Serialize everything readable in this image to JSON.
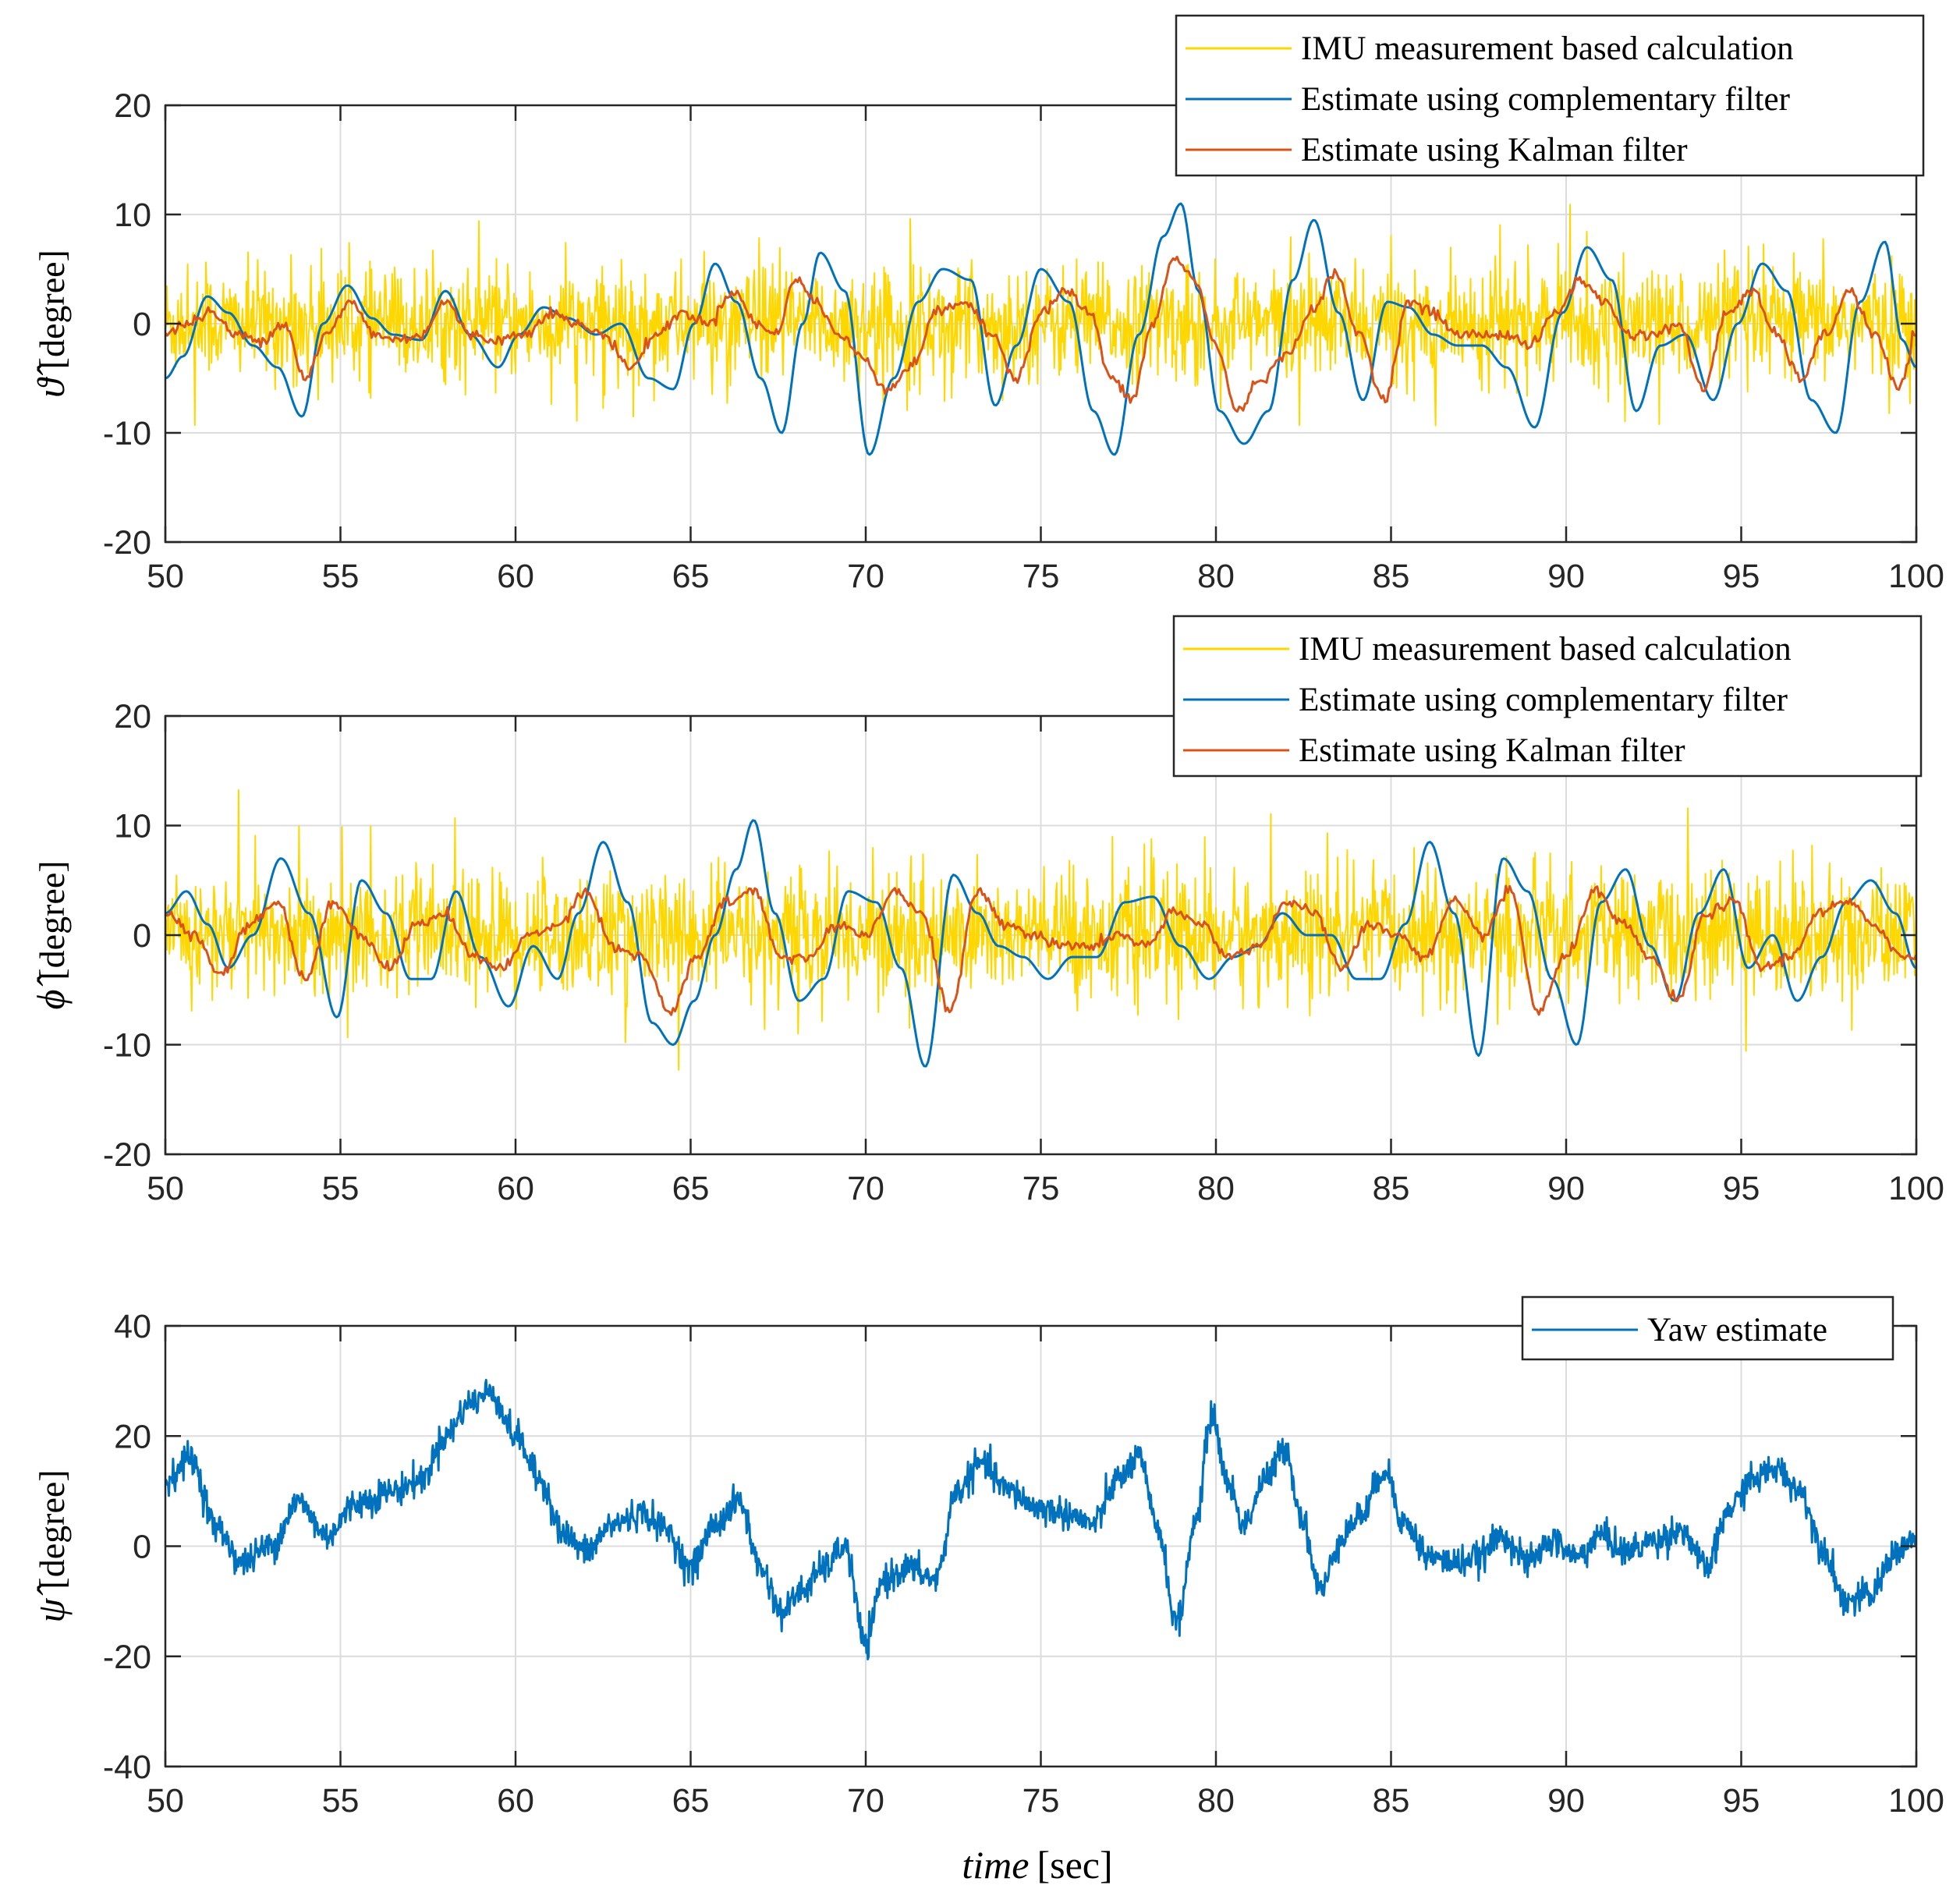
{
  "chart_data": [
    {
      "type": "line",
      "title": "",
      "ylabel_symbol": "ϑ̂",
      "ylabel_unit": "[degree]",
      "xlabel": "",
      "xlim": [
        50,
        100
      ],
      "ylim": [
        -20,
        20
      ],
      "xticks": [
        50,
        55,
        60,
        65,
        70,
        75,
        80,
        85,
        90,
        95,
        100
      ],
      "yticks": [
        -20,
        -10,
        0,
        10,
        20
      ],
      "grid": true,
      "legend_position": "top-right",
      "series": [
        {
          "name": "IMU measurement based calculation",
          "color": "#FFD700",
          "style": "noisy",
          "noise_amplitude": 4.5,
          "x": [
            50,
            100
          ],
          "y": [
            0,
            0
          ]
        },
        {
          "name": "Estimate using complementary filter",
          "color": "#0072BD",
          "x": [
            50,
            50.5,
            51.2,
            51.8,
            52.5,
            53.2,
            53.9,
            54.5,
            55.2,
            55.9,
            56.5,
            57.3,
            58,
            58.7,
            59.5,
            60.1,
            60.8,
            61.5,
            62.3,
            63,
            63.8,
            64.5,
            65.1,
            65.7,
            66.3,
            67,
            67.6,
            68.2,
            68.7,
            69.4,
            70.1,
            70.8,
            71.5,
            72.2,
            73,
            73.7,
            74.3,
            75,
            75.8,
            76.5,
            77.1,
            77.8,
            78.5,
            79,
            79.5,
            80.1,
            80.8,
            81.5,
            82.2,
            82.8,
            83.5,
            84.2,
            84.9,
            85.5,
            86.2,
            86.9,
            87.6,
            88.3,
            89.1,
            89.9,
            90.6,
            91.3,
            92,
            92.7,
            93.4,
            94.2,
            94.9,
            95.6,
            96.3,
            97,
            97.7,
            98.4,
            99.1,
            99.6,
            100
          ],
          "y": [
            -5,
            -3,
            2.5,
            1,
            -2,
            -4,
            -8.5,
            0,
            3.5,
            0.5,
            -1,
            -1.5,
            3,
            -1,
            -4,
            -1,
            1.5,
            0.5,
            -1,
            0,
            -5,
            -6,
            0,
            5.5,
            2,
            -5,
            -10,
            0,
            6.5,
            3,
            -12,
            -5,
            2,
            5,
            4,
            -7.5,
            -2,
            5,
            2,
            -8,
            -12,
            -1,
            8,
            11,
            3,
            -8,
            -11,
            -8,
            4,
            9.5,
            1,
            -7,
            2,
            1.5,
            -1,
            -2,
            -2,
            -4,
            -9.5,
            1,
            7,
            4,
            -8,
            -2,
            -1,
            -7,
            0,
            5.5,
            3,
            -7,
            -10,
            2,
            7.5,
            -1.5,
            -4
          ]
        },
        {
          "name": "Estimate using Kalman filter",
          "color": "#D95319",
          "x": [
            50,
            50.6,
            51.3,
            52,
            52.7,
            53.4,
            54,
            54.6,
            55.3,
            56,
            56.6,
            57.3,
            58,
            58.7,
            59.4,
            60.2,
            61,
            61.7,
            62.5,
            63.3,
            64,
            64.8,
            65.5,
            66.2,
            66.9,
            67.4,
            68,
            68.6,
            69.2,
            69.9,
            70.6,
            71.3,
            72,
            72.8,
            73.6,
            74.3,
            75,
            75.7,
            76.4,
            77,
            77.6,
            78.2,
            78.8,
            79.4,
            80,
            80.6,
            81.3,
            82,
            82.7,
            83.4,
            84.1,
            84.8,
            85.5,
            86.2,
            86.9,
            87.6,
            88.3,
            89,
            89.7,
            90.4,
            91.1,
            91.8,
            92.5,
            93.2,
            93.9,
            94.6,
            95.3,
            96,
            96.7,
            97.4,
            98.1,
            98.8,
            99.5,
            100
          ],
          "y": [
            -1,
            0,
            1,
            -1,
            -1.5,
            0,
            -5,
            -1,
            2,
            -1,
            -1.5,
            -1,
            2,
            -1,
            -1.5,
            -1,
            1,
            0,
            -1,
            -4,
            -1,
            1,
            0,
            3,
            0,
            -1,
            4,
            2,
            -1,
            -3,
            -6,
            -4,
            1,
            2,
            -1,
            -5,
            1,
            3,
            1,
            -5,
            -7,
            0,
            6,
            4,
            -2,
            -8,
            -5,
            -3,
            1,
            4.5,
            -1,
            -7,
            2,
            1,
            -1,
            -1,
            -1,
            -2,
            1,
            4,
            2,
            -1,
            -1,
            0,
            -6,
            1,
            3,
            -1,
            -5,
            -1,
            3,
            -1,
            -6,
            -1
          ]
        }
      ]
    },
    {
      "type": "line",
      "title": "",
      "ylabel_symbol": "ϕ̂",
      "ylabel_unit": "[degree]",
      "xlabel": "",
      "xlim": [
        50,
        100
      ],
      "ylim": [
        -20,
        20
      ],
      "xticks": [
        50,
        55,
        60,
        65,
        70,
        75,
        80,
        85,
        90,
        95,
        100
      ],
      "yticks": [
        -20,
        -10,
        0,
        10,
        20
      ],
      "grid": true,
      "legend_position": "top-right",
      "series": [
        {
          "name": "IMU measurement based calculation",
          "color": "#FFD700",
          "style": "noisy",
          "noise_amplitude": 5,
          "x": [
            50,
            100
          ],
          "y": [
            0,
            0
          ]
        },
        {
          "name": "Estimate using complementary filter",
          "color": "#0072BD",
          "x": [
            50,
            50.6,
            51.2,
            51.8,
            52.5,
            53.3,
            54.1,
            54.9,
            55.6,
            56.3,
            57,
            57.6,
            58.3,
            59,
            59.8,
            60.5,
            61.2,
            61.8,
            62.5,
            63.2,
            63.9,
            64.5,
            65.1,
            65.7,
            66.3,
            66.8,
            67.4,
            68.1,
            68.8,
            69.5,
            70.3,
            71,
            71.7,
            72.5,
            73.2,
            73.8,
            74.5,
            75.2,
            75.9,
            76.6,
            77.4,
            78.2,
            79,
            79.8,
            80.5,
            81.2,
            81.9,
            82.6,
            83.3,
            84,
            84.7,
            85.4,
            86.1,
            86.8,
            87.5,
            88.2,
            88.9,
            89.6,
            90.3,
            91,
            91.7,
            92.4,
            93.1,
            93.8,
            94.5,
            95.2,
            95.9,
            96.6,
            97.3,
            98,
            98.7,
            99.4,
            100
          ],
          "y": [
            2,
            4,
            1,
            -3,
            0,
            7,
            2,
            -7.5,
            5,
            2,
            -4,
            -4,
            4,
            -2,
            -6.5,
            -1,
            -4,
            2,
            8.5,
            3,
            -8,
            -10,
            -6,
            0,
            6,
            10.5,
            2,
            -6,
            -4,
            4,
            3,
            -3,
            -12,
            5.5,
            2,
            -1,
            -2,
            -4,
            -2,
            -2,
            3,
            3.5,
            -1,
            -4,
            -2,
            -1,
            2,
            0,
            0,
            -4,
            -4,
            1,
            8.5,
            2,
            -11,
            7,
            4,
            -4,
            -10,
            3,
            6,
            -1,
            -6,
            2,
            6,
            -3,
            0,
            -6,
            -2,
            3,
            5,
            2,
            -3
          ]
        },
        {
          "name": "Estimate using Kalman filter",
          "color": "#D95319",
          "x": [
            50,
            50.8,
            51.6,
            52.4,
            53.2,
            54,
            54.8,
            55.6,
            56.4,
            57.2,
            58,
            58.8,
            59.6,
            60.4,
            61.2,
            62,
            62.8,
            63.6,
            64.4,
            65.2,
            66,
            66.8,
            67.6,
            68.4,
            69.2,
            70,
            70.8,
            71.6,
            72.4,
            73.2,
            74,
            74.8,
            75.6,
            76.4,
            77.2,
            78,
            78.8,
            79.6,
            80.4,
            81.2,
            82,
            82.8,
            83.6,
            84.4,
            85.2,
            86,
            86.8,
            87.6,
            88.4,
            89.2,
            90,
            90.8,
            91.6,
            92.4,
            93.2,
            94,
            94.8,
            95.6,
            96.4,
            97.2,
            98,
            98.8,
            99.6,
            100
          ],
          "y": [
            2,
            0,
            -3.5,
            1,
            3,
            -4,
            3,
            0,
            -3,
            1,
            2,
            -2,
            -3,
            0,
            1,
            4,
            -1,
            -2,
            -7,
            -2,
            3,
            4,
            -2,
            -2,
            1,
            0,
            4,
            2,
            -7,
            4,
            1,
            0,
            -1,
            -1,
            0,
            -1,
            2,
            1,
            -2,
            -1,
            3,
            2,
            -3,
            1,
            0,
            -2,
            3,
            0,
            4,
            -7,
            -2,
            4,
            1,
            -2,
            -6,
            2,
            3,
            -3,
            -2,
            2,
            3,
            1,
            -2,
            -2
          ]
        }
      ]
    },
    {
      "type": "line",
      "title": "",
      "ylabel_symbol": "ψ̂",
      "ylabel_unit": "[degree]",
      "xlabel_symbol": "time",
      "xlabel_unit": "[sec]",
      "xlim": [
        50,
        100
      ],
      "ylim": [
        -40,
        40
      ],
      "xticks": [
        50,
        55,
        60,
        65,
        70,
        75,
        80,
        85,
        90,
        95,
        100
      ],
      "yticks": [
        -40,
        -20,
        0,
        20,
        40
      ],
      "grid": true,
      "legend_position": "top-right",
      "series": [
        {
          "name": "Yaw estimate",
          "color": "#0072BD",
          "style": "jitter",
          "noise_amplitude": 1.4,
          "x": [
            50,
            50.7,
            51.5,
            52.2,
            53,
            53.8,
            54.6,
            55.5,
            56.5,
            57.3,
            58,
            58.7,
            59.3,
            60,
            60.7,
            61.4,
            62,
            62.8,
            63.6,
            64.3,
            65,
            65.7,
            66.4,
            67,
            67.6,
            68.2,
            68.8,
            69.4,
            70,
            70.5,
            71.2,
            72,
            72.6,
            73.3,
            74.1,
            74.9,
            75.7,
            76.5,
            77.2,
            77.8,
            78.3,
            78.9,
            79.4,
            79.9,
            80.3,
            80.8,
            81.4,
            82,
            82.4,
            83,
            83.6,
            84.2,
            84.8,
            85.4,
            86.1,
            86.8,
            87.5,
            88.2,
            88.9,
            89.6,
            90.3,
            91,
            91.7,
            92.5,
            93.3,
            94,
            94.7,
            95.3,
            96,
            96.7,
            97.3,
            98,
            98.7,
            99.4,
            100
          ],
          "y": [
            12,
            16,
            3,
            -3,
            0,
            8,
            2,
            8,
            10,
            12,
            20,
            26,
            28,
            20,
            12,
            2,
            -1,
            4,
            6,
            3,
            -4,
            4,
            8,
            -4,
            -12,
            -8,
            -4,
            0,
            -18,
            -6,
            -4,
            -6,
            10,
            15,
            10,
            7,
            6,
            4,
            12,
            16,
            4,
            -14,
            4,
            24,
            12,
            4,
            12,
            18,
            6,
            -8,
            2,
            6,
            14,
            4,
            -2,
            -3,
            -2,
            2,
            -3,
            1,
            -2,
            2,
            -1,
            1,
            3,
            -4,
            7,
            12,
            14,
            10,
            0,
            -10,
            -9,
            -1,
            1
          ]
        }
      ]
    }
  ]
}
